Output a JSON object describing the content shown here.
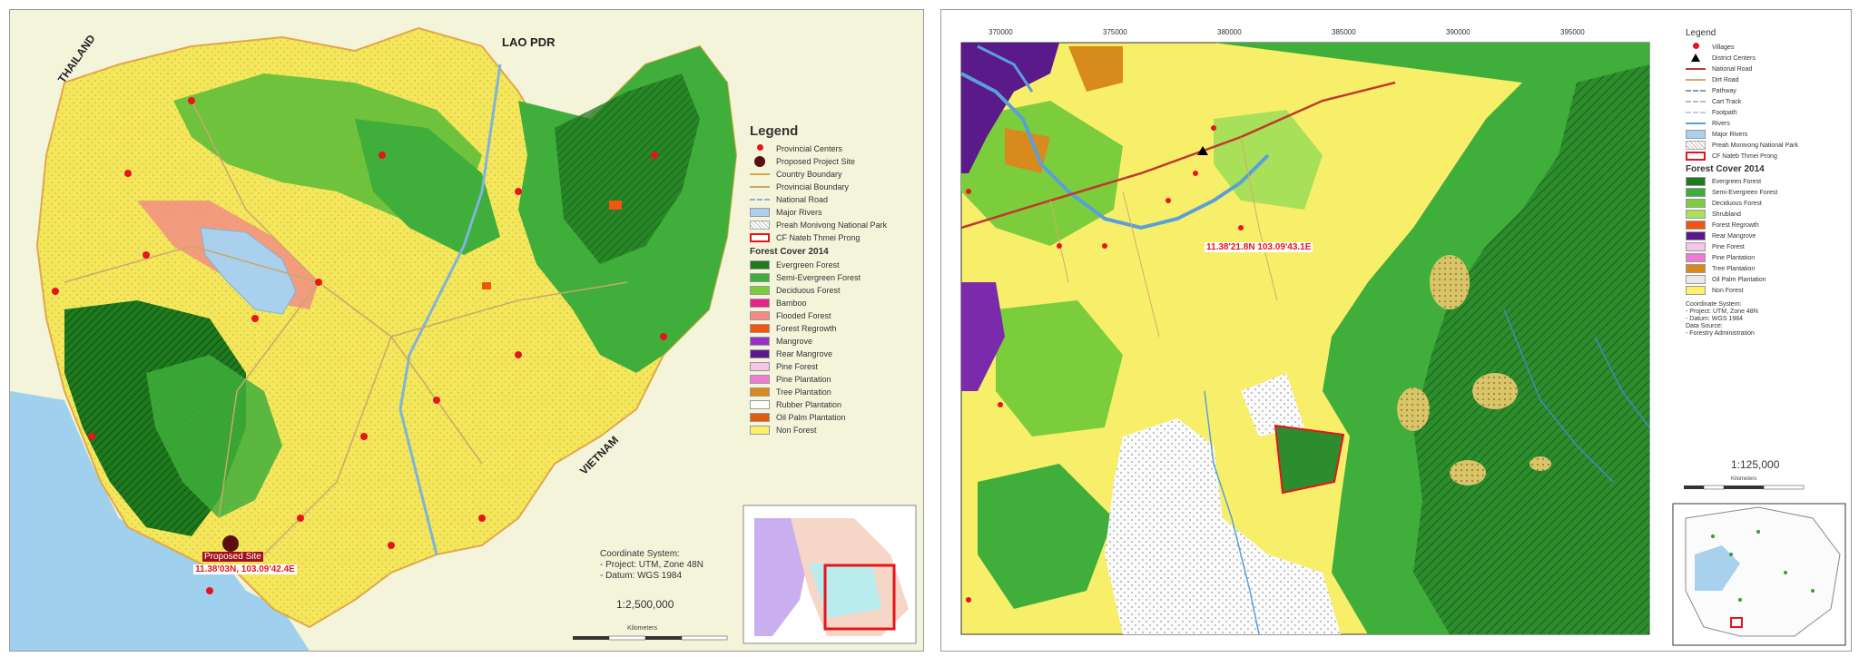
{
  "left_map": {
    "country_labels": [
      "LAO PDR",
      "THAILAND",
      "VIETNAM"
    ],
    "site_label": "Proposed Site",
    "site_coords": "11.38'03N, 103.09'42.4E",
    "legend": {
      "title": "Legend",
      "items": [
        {
          "label": "Provincial Centers",
          "symbol": "dot",
          "color": "#e8141b"
        },
        {
          "label": "Proposed Project Site",
          "symbol": "bigdot",
          "color": "#5a0e0e"
        },
        {
          "label": "Country Boundary",
          "symbol": "line",
          "color": "#e0a84a"
        },
        {
          "label": "Provincial Boundary",
          "symbol": "line",
          "color": "#c9a86a"
        },
        {
          "label": "National Road",
          "symbol": "dash",
          "color": "#8ab0d8"
        },
        {
          "label": "Major Rivers",
          "symbol": "fill",
          "color": "#a9d1ee"
        },
        {
          "label": "Preah Monivong National Park",
          "symbol": "hatch",
          "color": "#bdbdbd"
        },
        {
          "label": "CF Nateb Thmei Prong",
          "symbol": "outline",
          "color": "#e8141b"
        }
      ],
      "section": "Forest Cover 2014",
      "forest_classes": [
        {
          "label": "Evergreen Forest",
          "color": "#1f7a1f"
        },
        {
          "label": "Semi-Evergreen Forest",
          "color": "#3fae3a"
        },
        {
          "label": "Deciduous Forest",
          "color": "#7ccd3c"
        },
        {
          "label": "Bamboo",
          "color": "#e81f8c"
        },
        {
          "label": "Flooded Forest",
          "color": "#f28a86"
        },
        {
          "label": "Forest Regrowth",
          "color": "#f0560f"
        },
        {
          "label": "Mangrove",
          "color": "#9a2fc9"
        },
        {
          "label": "Rear Mangrove",
          "color": "#5a1a8a"
        },
        {
          "label": "Pine Forest",
          "color": "#f5c6e6"
        },
        {
          "label": "Pine Plantation",
          "color": "#f07ad0"
        },
        {
          "label": "Tree Plantation",
          "color": "#d98a1c"
        },
        {
          "label": "Rubber Plantation",
          "color": "#ffffff"
        },
        {
          "label": "Oil Palm Plantation",
          "color": "#e05a14"
        },
        {
          "label": "Non Forest",
          "color": "#fff06a"
        }
      ]
    },
    "coordinate_system": [
      "Coordinate System:",
      "- Project: UTM, Zone 48N",
      "- Datum: WGS 1984"
    ],
    "scale": "1:2,500,000",
    "scale_unit": "Kilometers"
  },
  "right_map": {
    "top_ticks": [
      "370000",
      "375000",
      "380000",
      "385000",
      "390000",
      "395000"
    ],
    "site_coords": "11.38'21.8N 103.09'43.1E",
    "legend": {
      "title": "Legend",
      "items": [
        {
          "label": "Villages",
          "symbol": "dot",
          "color": "#e8141b"
        },
        {
          "label": "District Centers",
          "symbol": "triangle",
          "color": "#000000"
        },
        {
          "label": "National Road",
          "symbol": "line",
          "color": "#c0392b"
        },
        {
          "label": "Dirt Road",
          "symbol": "line",
          "color": "#d9a86a"
        },
        {
          "label": "Pathway",
          "symbol": "dash",
          "color": "#999999"
        },
        {
          "label": "Cart Track",
          "symbol": "dash",
          "color": "#bbbbbb"
        },
        {
          "label": "Footpath",
          "symbol": "dash",
          "color": "#cccccc"
        },
        {
          "label": "Rivers",
          "symbol": "line",
          "color": "#5aa0d8"
        },
        {
          "label": "Major Rivers",
          "symbol": "fill",
          "color": "#a9d1ee"
        },
        {
          "label": "Preah Monivong National Park",
          "symbol": "hatch",
          "color": "#bdbdbd"
        },
        {
          "label": "CF Nateb Thmei Prong",
          "symbol": "outline",
          "color": "#e8141b"
        }
      ],
      "section": "Forest Cover 2014",
      "forest_classes": [
        {
          "label": "Evergreen Forest",
          "color": "#1f7a1f"
        },
        {
          "label": "Semi-Evergreen Forest",
          "color": "#3fae3a"
        },
        {
          "label": "Deciduous Forest",
          "color": "#7ccd3c"
        },
        {
          "label": "Shrubland",
          "color": "#a8e05a"
        },
        {
          "label": "Forest Regrowth",
          "color": "#f0560f"
        },
        {
          "label": "Rear Mangrove",
          "color": "#5a1a8a"
        },
        {
          "label": "Pine Forest",
          "color": "#f5c6e6"
        },
        {
          "label": "Pine Plantation",
          "color": "#f07ad0"
        },
        {
          "label": "Tree Plantation",
          "color": "#d98a1c"
        },
        {
          "label": "Oil Palm Plantation",
          "color": "#e9e9e9"
        },
        {
          "label": "Non Forest",
          "color": "#fff06a"
        }
      ]
    },
    "meta": [
      "Coordinate System:",
      "- Project: UTM, Zone 48N",
      "- Datum: WGS 1984",
      "Data Source:",
      "- Forestry Administration"
    ],
    "scale": "1:125,000",
    "scale_unit": "Kilometers"
  }
}
